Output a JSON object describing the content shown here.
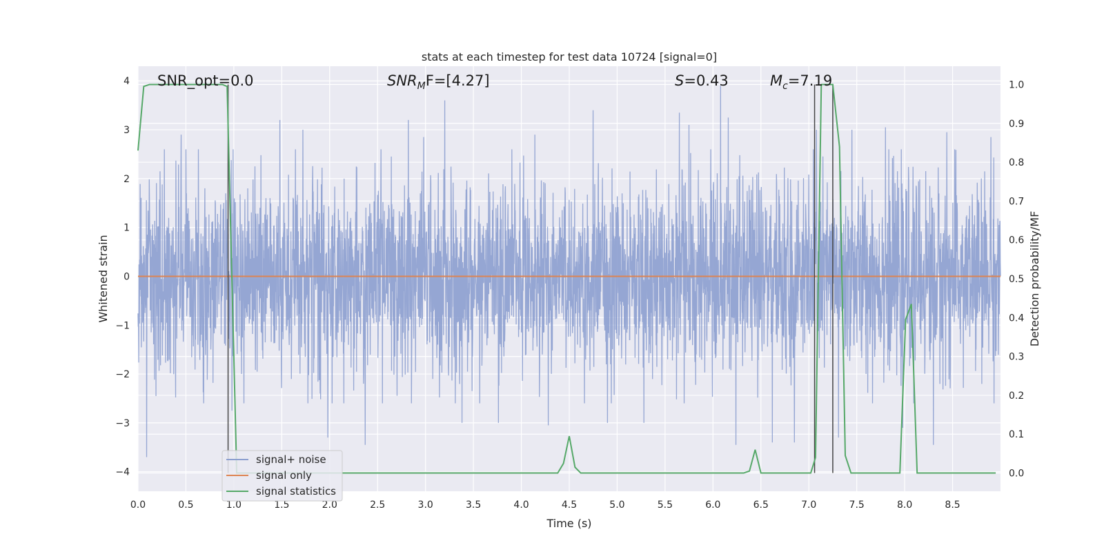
{
  "chart_data": {
    "type": "line",
    "title": "stats at each timestep for test data 10724 [signal=0]",
    "xlabel": "Time (s)",
    "ylabel": "Whitened strain",
    "y2label": "Detection probability/MF",
    "xlim": [
      0,
      9.0
    ],
    "ylim": [
      -4.4,
      4.3
    ],
    "y2lim": [
      -0.047,
      1.047
    ],
    "xticks": [
      0.0,
      0.5,
      1.0,
      1.5,
      2.0,
      2.5,
      3.0,
      3.5,
      4.0,
      4.5,
      5.0,
      5.5,
      6.0,
      6.5,
      7.0,
      7.5,
      8.0,
      8.5
    ],
    "xtick_labels": [
      "0.0",
      "0.5",
      "1.0",
      "1.5",
      "2.0",
      "2.5",
      "3.0",
      "3.5",
      "4.0",
      "4.5",
      "5.0",
      "5.5",
      "6.0",
      "6.5",
      "7.0",
      "7.5",
      "8.0",
      "8.5"
    ],
    "yticks": [
      4,
      3,
      2,
      1,
      0,
      -1,
      -2,
      -3,
      -4
    ],
    "ytick_labels": [
      "4",
      "3",
      "2",
      "1",
      "0",
      "−1",
      "−2",
      "−3",
      "−4"
    ],
    "y2ticks": [
      1.0,
      0.9,
      0.8,
      0.7,
      0.6,
      0.5,
      0.4,
      0.3,
      0.2,
      0.1,
      0.0
    ],
    "y2tick_labels": [
      "1.0",
      "0.9",
      "0.8",
      "0.7",
      "0.6",
      "0.5",
      "0.4",
      "0.3",
      "0.2",
      "0.1",
      "0.0"
    ],
    "grid": true,
    "legend_position": "lower-left",
    "legend": [
      "signal+ noise",
      "signal only",
      "signal statistics"
    ],
    "annotations": {
      "snr_opt": "SNR_opt=0.0",
      "snr_mf_main": "SNR",
      "snr_mf_sub": "M",
      "snr_mf_rest": "F=[4.27]",
      "s_main": "S",
      "s_rest": "=0.43",
      "mc_main": "M",
      "mc_sub": "c",
      "mc_rest": "=7.19"
    },
    "noise": {
      "description_values": "whitened strain noise, approx Gaussian sigma ~1.0, peaks to about +3.9 and -3.7",
      "peaks": [
        [
          0.09,
          -3.7
        ],
        [
          0.45,
          2.9
        ],
        [
          0.98,
          -2.75
        ],
        [
          1.48,
          3.2
        ],
        [
          1.72,
          3.0
        ],
        [
          1.9,
          -2.4
        ],
        [
          1.98,
          -3.3
        ],
        [
          2.37,
          -3.45
        ],
        [
          2.82,
          3.2
        ],
        [
          2.98,
          2.85
        ],
        [
          3.2,
          3.6
        ],
        [
          3.38,
          -3.0
        ],
        [
          3.76,
          -3.0
        ],
        [
          4.14,
          2.9
        ],
        [
          4.28,
          -3.05
        ],
        [
          4.75,
          3.4
        ],
        [
          4.9,
          -3.0
        ],
        [
          5.28,
          -3.0
        ],
        [
          5.65,
          3.35
        ],
        [
          5.75,
          3.1
        ],
        [
          6.08,
          3.9
        ],
        [
          6.16,
          3.25
        ],
        [
          6.24,
          -3.45
        ],
        [
          6.62,
          -3.4
        ],
        [
          6.85,
          -3.4
        ],
        [
          7.08,
          3.0
        ],
        [
          7.31,
          -3.3
        ],
        [
          7.45,
          3.0
        ],
        [
          7.8,
          3.05
        ],
        [
          7.98,
          -3.1
        ],
        [
          8.3,
          -3.45
        ],
        [
          8.44,
          2.95
        ],
        [
          8.9,
          2.85
        ]
      ]
    },
    "series": [
      {
        "name": "signal statistics",
        "color": "#55a868",
        "axis": "right",
        "x": [
          0.0,
          0.06,
          0.12,
          0.2,
          0.3,
          0.5,
          0.7,
          0.88,
          0.93,
          1.03,
          1.1,
          1.5,
          2.0,
          2.5,
          3.0,
          3.5,
          4.0,
          4.38,
          4.44,
          4.5,
          4.56,
          4.62,
          5.0,
          5.5,
          6.0,
          6.32,
          6.38,
          6.44,
          6.5,
          7.0,
          7.02,
          7.07,
          7.13,
          7.25,
          7.32,
          7.38,
          7.44,
          7.5,
          7.95,
          8.01,
          8.07,
          8.13,
          8.5,
          8.95
        ],
        "values": [
          0.83,
          0.995,
          1.0,
          1.0,
          1.0,
          1.0,
          1.0,
          1.0,
          0.995,
          0.0,
          0.0,
          0.0,
          0.0,
          0.0,
          0.0,
          0.0,
          0.0,
          0.0,
          0.025,
          0.095,
          0.015,
          0.0,
          0.0,
          0.0,
          0.0,
          0.0,
          0.005,
          0.06,
          0.0,
          0.0,
          0.0,
          0.04,
          1.0,
          1.0,
          0.84,
          0.045,
          0.0,
          0.0,
          0.0,
          0.395,
          0.435,
          0.0,
          0.0,
          0.0
        ]
      },
      {
        "name": "signal only",
        "color": "#dd8452",
        "axis": "left",
        "x": [
          0.0,
          9.0
        ],
        "values": [
          0.0,
          0.0
        ]
      }
    ],
    "vlines": [
      0.94,
      7.06,
      7.25
    ],
    "colors": {
      "noise": "#8c9fcf",
      "signal_statistics": "#55a868",
      "signal_only": "#dd8452",
      "plot_background": "#eaeaf2",
      "grid": "#ffffff",
      "vline": "#444444"
    }
  }
}
